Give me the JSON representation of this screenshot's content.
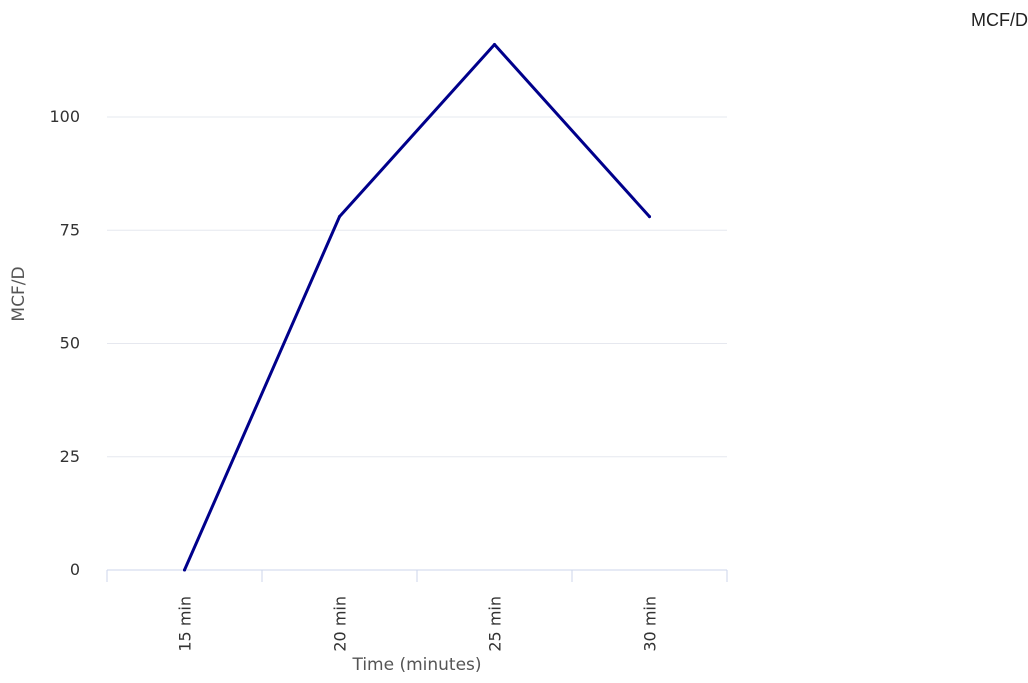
{
  "chart_data": {
    "type": "line",
    "title": "",
    "xlabel": "Time (minutes)",
    "ylabel": "MCF/D",
    "categories": [
      "15 min",
      "20 min",
      "25 min",
      "30 min"
    ],
    "series": [
      {
        "name": "MCF/D",
        "values": [
          0,
          78,
          116,
          78
        ],
        "color": "#00008b"
      }
    ],
    "ylim": [
      0,
      120
    ],
    "yticks": [
      0,
      25,
      50,
      75,
      100
    ],
    "grid": true,
    "legend_position": "top-right"
  },
  "colors": {
    "line": "#00008b",
    "grid": "#e6e8ef",
    "axis": "#ccd6eb",
    "tick_text": "#333333",
    "axis_title": "#555555"
  }
}
